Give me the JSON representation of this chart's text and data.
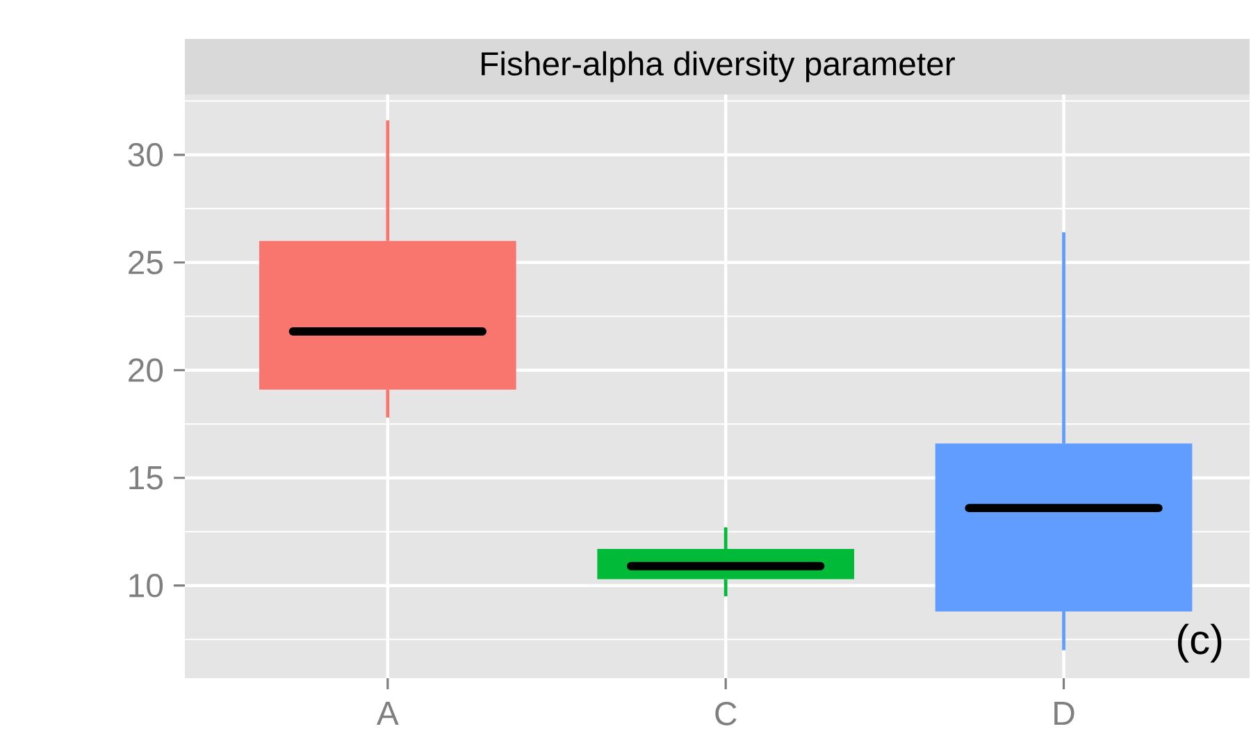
{
  "chart_data": {
    "type": "box",
    "title": "Fisher-alpha diversity parameter",
    "categories": [
      "A",
      "C",
      "D"
    ],
    "colors": [
      "#f8766d",
      "#00ba38",
      "#619cff"
    ],
    "boxes": [
      {
        "low": 17.8,
        "q1": 19.1,
        "median": 21.8,
        "q3": 26.0,
        "high": 31.6
      },
      {
        "low": 9.5,
        "q1": 10.3,
        "median": 10.9,
        "q3": 11.7,
        "high": 12.7
      },
      {
        "low": 7.0,
        "q1": 8.8,
        "median": 13.6,
        "q3": 16.6,
        "high": 26.4
      }
    ],
    "ylim": [
      5.7,
      32.8
    ],
    "yticks": [
      10,
      15,
      20,
      25,
      30
    ],
    "grid": true,
    "annotations": [
      "(c)"
    ]
  }
}
